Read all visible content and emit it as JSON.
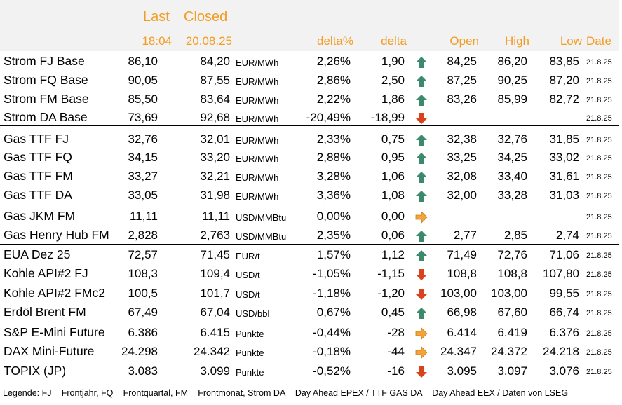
{
  "header": {
    "last_label": "Last",
    "closed_label": "Closed",
    "last_time": "18:04",
    "closed_date": "20.08.25",
    "delta_pct_label": "delta%",
    "delta_label": "delta",
    "open_label": "Open",
    "high_label": "High",
    "low_label": "Low",
    "date_label": "Date"
  },
  "colors": {
    "header_accent": "#f39c22",
    "header_band": "#f2f2f2",
    "arrow_up": "#3a8a6b",
    "arrow_down": "#d9421b",
    "arrow_flat": "#f2a33b"
  },
  "rows": [
    {
      "name": "Strom FJ Base",
      "last": "86,10",
      "closed": "84,20",
      "unit": "EUR/MWh",
      "delta_pct": "2,26%",
      "delta": "1,90",
      "trend": "up",
      "open": "84,25",
      "high": "86,20",
      "low": "83,85",
      "date": "21.8.25"
    },
    {
      "name": "Strom FQ Base",
      "last": "90,05",
      "closed": "87,55",
      "unit": "EUR/MWh",
      "delta_pct": "2,86%",
      "delta": "2,50",
      "trend": "up",
      "open": "87,25",
      "high": "90,25",
      "low": "87,20",
      "date": "21.8.25"
    },
    {
      "name": "Strom FM Base",
      "last": "85,50",
      "closed": "83,64",
      "unit": "EUR/MWh",
      "delta_pct": "2,22%",
      "delta": "1,86",
      "trend": "up",
      "open": "83,26",
      "high": "85,99",
      "low": "82,72",
      "date": "21.8.25"
    },
    {
      "name": "Strom DA Base",
      "last": "73,69",
      "closed": "92,68",
      "unit": "EUR/MWh",
      "delta_pct": "-20,49%",
      "delta": "-18,99",
      "trend": "down",
      "open": "",
      "high": "",
      "low": "",
      "date": "21.8.25"
    },
    {
      "name": "Gas TTF FJ",
      "last": "32,76",
      "closed": "32,01",
      "unit": "EUR/MWh",
      "delta_pct": "2,33%",
      "delta": "0,75",
      "trend": "up",
      "open": "32,38",
      "high": "32,76",
      "low": "31,85",
      "date": "21.8.25"
    },
    {
      "name": "Gas TTF FQ",
      "last": "34,15",
      "closed": "33,20",
      "unit": "EUR/MWh",
      "delta_pct": "2,88%",
      "delta": "0,95",
      "trend": "up",
      "open": "33,25",
      "high": "34,25",
      "low": "33,02",
      "date": "21.8.25"
    },
    {
      "name": "Gas TTF FM",
      "last": "33,27",
      "closed": "32,21",
      "unit": "EUR/MWh",
      "delta_pct": "3,28%",
      "delta": "1,06",
      "trend": "up",
      "open": "32,08",
      "high": "33,40",
      "low": "31,61",
      "date": "21.8.25"
    },
    {
      "name": "Gas TTF DA",
      "last": "33,05",
      "closed": "31,98",
      "unit": "EUR/MWh",
      "delta_pct": "3,36%",
      "delta": "1,08",
      "trend": "up",
      "open": "32,00",
      "high": "33,28",
      "low": "31,03",
      "date": "21.8.25"
    },
    {
      "name": "Gas JKM FM",
      "last": "11,11",
      "closed": "11,11",
      "unit": "USD/MMBtu",
      "delta_pct": "0,00%",
      "delta": "0,00",
      "trend": "flat",
      "open": "",
      "high": "",
      "low": "",
      "date": "21.8.25"
    },
    {
      "name": "Gas Henry Hub FM",
      "last": "2,828",
      "closed": "2,763",
      "unit": "USD/MMBtu",
      "delta_pct": "2,35%",
      "delta": "0,06",
      "trend": "up",
      "open": "2,77",
      "high": "2,85",
      "low": "2,74",
      "date": "21.8.25"
    },
    {
      "name": "EUA Dez 25",
      "last": "72,57",
      "closed": "71,45",
      "unit": "EUR/t",
      "delta_pct": "1,57%",
      "delta": "1,12",
      "trend": "up",
      "open": "71,49",
      "high": "72,76",
      "low": "71,06",
      "date": "21.8.25"
    },
    {
      "name": "Kohle API#2 FJ",
      "last": "108,3",
      "closed": "109,4",
      "unit": "USD/t",
      "delta_pct": "-1,05%",
      "delta": "-1,15",
      "trend": "down",
      "open": "108,8",
      "high": "108,8",
      "low": "107,80",
      "date": "21.8.25"
    },
    {
      "name": "Kohle API#2 FMc2",
      "last": "100,5",
      "closed": "101,7",
      "unit": "USD/t",
      "delta_pct": "-1,18%",
      "delta": "-1,20",
      "trend": "down",
      "open": "103,00",
      "high": "103,00",
      "low": "99,55",
      "date": "21.8.25"
    },
    {
      "name": "Erdöl Brent FM",
      "last": "67,49",
      "closed": "67,04",
      "unit": "USD/bbl",
      "delta_pct": "0,67%",
      "delta": "0,45",
      "trend": "up",
      "open": "66,98",
      "high": "67,60",
      "low": "66,74",
      "date": "21.8.25"
    },
    {
      "name": "S&P E-Mini Future",
      "last": "6.386",
      "closed": "6.415",
      "unit": "Punkte",
      "delta_pct": "-0,44%",
      "delta": "-28",
      "trend": "flat",
      "open": "6.414",
      "high": "6.419",
      "low": "6.376",
      "date": "21.8.25"
    },
    {
      "name": "DAX Mini-Future",
      "last": "24.298",
      "closed": "24.342",
      "unit": "Punkte",
      "delta_pct": "-0,18%",
      "delta": "-44",
      "trend": "flat",
      "open": "24.347",
      "high": "24.372",
      "low": "24.218",
      "date": "21.8.25"
    },
    {
      "name": "TOPIX (JP)",
      "last": "3.083",
      "closed": "3.099",
      "unit": "Punkte",
      "delta_pct": "-0,52%",
      "delta": "-16",
      "trend": "down",
      "open": "3.095",
      "high": "3.097",
      "low": "3.076",
      "date": "21.8.25"
    }
  ],
  "legend": "Legende: FJ = Frontjahr, FQ = Frontquartal, FM = Frontmonat, Strom DA = Day Ahead EPEX / TTF GAS DA = Day Ahead EEX / Daten von LSEG"
}
